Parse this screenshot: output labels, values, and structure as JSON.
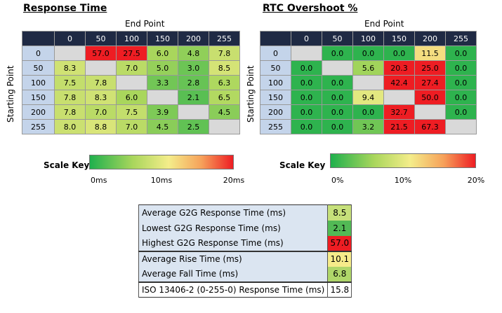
{
  "chart_data": [
    {
      "type": "heatmap",
      "title": "Response Time",
      "xlabel": "End Point",
      "ylabel": "Starting Point",
      "columns": [
        "0",
        "50",
        "100",
        "150",
        "200",
        "255"
      ],
      "rows": [
        "0",
        "50",
        "100",
        "150",
        "200",
        "255"
      ],
      "values": [
        [
          null,
          57.0,
          27.5,
          6.0,
          4.8,
          7.8
        ],
        [
          8.3,
          null,
          7.0,
          5.0,
          3.0,
          8.5
        ],
        [
          7.5,
          7.8,
          null,
          3.3,
          2.8,
          6.3
        ],
        [
          7.8,
          8.3,
          6.0,
          null,
          2.1,
          6.5
        ],
        [
          7.8,
          7.0,
          7.5,
          3.9,
          null,
          4.5
        ],
        [
          8.0,
          8.8,
          7.0,
          4.5,
          2.5,
          null
        ]
      ],
      "display": [
        [
          "",
          "57.0",
          "27.5",
          "6.0",
          "4.8",
          "7.8"
        ],
        [
          "8.3",
          "",
          "7.0",
          "5.0",
          "3.0",
          "8.5"
        ],
        [
          "7.5",
          "7.8",
          "",
          "3.3",
          "2.8",
          "6.3"
        ],
        [
          "7.8",
          "8.3",
          "6.0",
          "",
          "2.1",
          "6.5"
        ],
        [
          "7.8",
          "7.0",
          "7.5",
          "3.9",
          "",
          "4.5"
        ],
        [
          "8.0",
          "8.8",
          "7.0",
          "4.5",
          "2.5",
          ""
        ]
      ],
      "scale": {
        "label": "Scale Key",
        "min": 0,
        "max": 20,
        "ticks": [
          {
            "value": 0,
            "label": "0ms"
          },
          {
            "value": 10,
            "label": "10ms"
          },
          {
            "value": 20,
            "label": "20ms"
          }
        ]
      }
    },
    {
      "type": "heatmap",
      "title": "RTC Overshoot %",
      "xlabel": "End Point",
      "ylabel": "Starting Point",
      "columns": [
        "0",
        "50",
        "100",
        "150",
        "200",
        "255"
      ],
      "rows": [
        "0",
        "50",
        "100",
        "150",
        "200",
        "255"
      ],
      "values": [
        [
          null,
          0.0,
          0.0,
          0.0,
          11.5,
          0.0
        ],
        [
          0.0,
          null,
          5.6,
          20.3,
          25.0,
          0.0
        ],
        [
          0.0,
          0.0,
          null,
          42.4,
          27.4,
          0.0
        ],
        [
          0.0,
          0.0,
          9.4,
          null,
          50.0,
          0.0
        ],
        [
          0.0,
          0.0,
          0.0,
          32.7,
          null,
          0.0
        ],
        [
          0.0,
          0.0,
          3.2,
          21.5,
          67.3,
          null
        ]
      ],
      "display": [
        [
          "",
          "0.0",
          "0.0",
          "0.0",
          "11.5",
          "0.0"
        ],
        [
          "0.0",
          "",
          "5.6",
          "20.3",
          "25.0",
          "0.0"
        ],
        [
          "0.0",
          "0.0",
          "",
          "42.4",
          "27.4",
          "0.0"
        ],
        [
          "0.0",
          "0.0",
          "9.4",
          "",
          "50.0",
          "0.0"
        ],
        [
          "0.0",
          "0.0",
          "0.0",
          "32.7",
          "",
          "0.0"
        ],
        [
          "0.0",
          "0.0",
          "3.2",
          "21.5",
          "67.3",
          ""
        ]
      ],
      "scale": {
        "label": "Scale Key",
        "min": 0,
        "max": 20,
        "ticks": [
          {
            "value": 0,
            "label": "0%"
          },
          {
            "value": 10,
            "label": "10%"
          },
          {
            "value": 20,
            "label": "20%"
          }
        ]
      }
    },
    {
      "type": "table",
      "rows": [
        {
          "label": "Average G2G Response Time (ms)",
          "value": "8.5",
          "color": "#c6e07a"
        },
        {
          "label": "Lowest G2G Response Time (ms)",
          "value": "2.1",
          "color": "#52b955"
        },
        {
          "label": "Highest G2G Response Time (ms)",
          "value": "57.0",
          "color": "#ee1d23"
        },
        {
          "label": "Average Rise Time (ms)",
          "value": "10.1",
          "color": "#f6eb8a"
        },
        {
          "label": "Average Fall Time (ms)",
          "value": "6.8",
          "color": "#afd66a"
        },
        {
          "label": "ISO 13406-2  (0-255-0) Response Time (ms)",
          "value": "15.8",
          "color": "#ffffff"
        }
      ]
    }
  ],
  "colors": {
    "header_bg": "#1f2a44",
    "row_header_bg": "#c4d4ea",
    "diagonal_bg": "#d9d9d9",
    "scale_low": "#1fb04d",
    "scale_mid": "#f4ed8a",
    "scale_high": "#ee1d23"
  }
}
